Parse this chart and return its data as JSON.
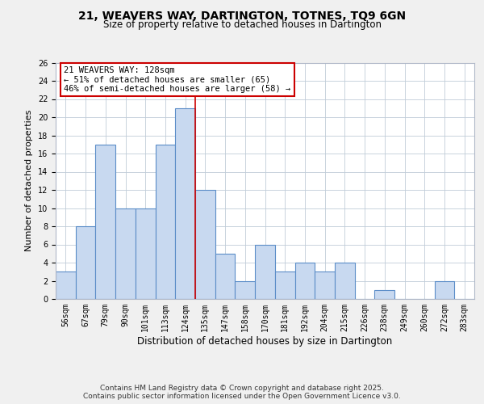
{
  "title": "21, WEAVERS WAY, DARTINGTON, TOTNES, TQ9 6GN",
  "subtitle": "Size of property relative to detached houses in Dartington",
  "xlabel": "Distribution of detached houses by size in Dartington",
  "ylabel": "Number of detached properties",
  "categories": [
    "56sqm",
    "67sqm",
    "79sqm",
    "90sqm",
    "101sqm",
    "113sqm",
    "124sqm",
    "135sqm",
    "147sqm",
    "158sqm",
    "170sqm",
    "181sqm",
    "192sqm",
    "204sqm",
    "215sqm",
    "226sqm",
    "238sqm",
    "249sqm",
    "260sqm",
    "272sqm",
    "283sqm"
  ],
  "values": [
    3,
    8,
    17,
    10,
    10,
    17,
    21,
    12,
    5,
    2,
    6,
    3,
    4,
    3,
    4,
    0,
    1,
    0,
    0,
    2,
    0
  ],
  "bar_color": "#c8d9f0",
  "bar_edge_color": "#5b8dc8",
  "vline_x_index": 7,
  "vline_color": "#cc0000",
  "annotation_title": "21 WEAVERS WAY: 128sqm",
  "annotation_line1": "← 51% of detached houses are smaller (65)",
  "annotation_line2": "46% of semi-detached houses are larger (58) →",
  "annotation_box_color": "#ffffff",
  "annotation_box_edge_color": "#cc0000",
  "ylim": [
    0,
    26
  ],
  "yticks": [
    0,
    2,
    4,
    6,
    8,
    10,
    12,
    14,
    16,
    18,
    20,
    22,
    24,
    26
  ],
  "footer1": "Contains HM Land Registry data © Crown copyright and database right 2025.",
  "footer2": "Contains public sector information licensed under the Open Government Licence v3.0.",
  "background_color": "#f0f0f0",
  "plot_bg_color": "#ffffff",
  "title_fontsize": 10,
  "subtitle_fontsize": 8.5,
  "xlabel_fontsize": 8.5,
  "ylabel_fontsize": 8,
  "tick_fontsize": 7,
  "footer_fontsize": 6.5,
  "annotation_fontsize": 7.5
}
